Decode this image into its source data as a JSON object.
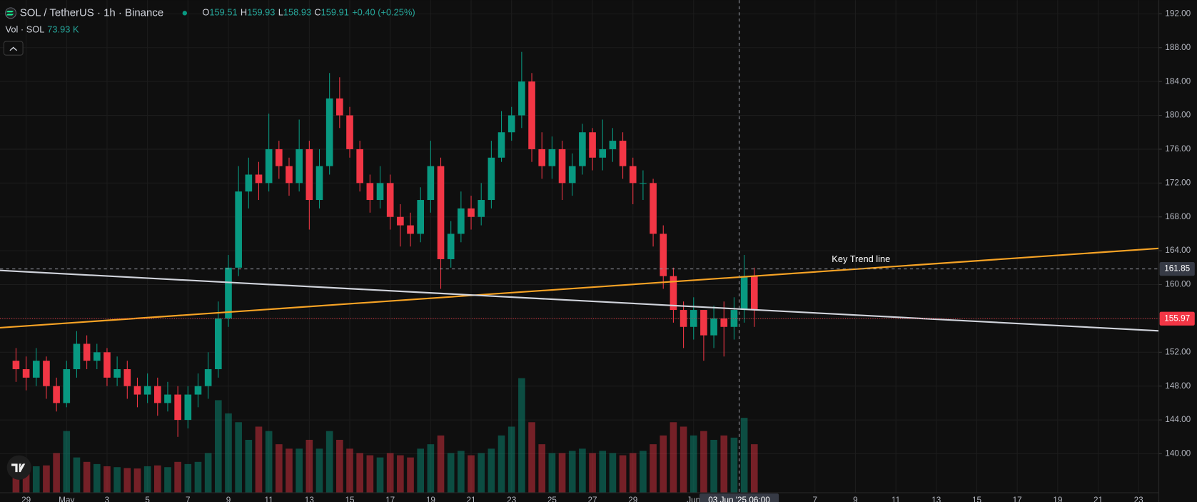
{
  "chart_data": {
    "type": "candlestick",
    "legend": {
      "symbol": "SOL / TetherUS · 1h · Binance",
      "ohlc": [
        {
          "label": "O",
          "value": 159.51
        },
        {
          "label": "H",
          "value": 159.93
        },
        {
          "label": "L",
          "value": 158.93
        },
        {
          "label": "C",
          "value": 159.91
        }
      ],
      "change": "+0.40 (+0.25%)",
      "volume_label": "Vol · SOL",
      "volume_value": "73.93 K"
    },
    "colors": {
      "up": "#089981",
      "down": "#f23645"
    },
    "x": [
      "2025-04-28T12:00",
      "2025-04-29T00:00",
      "2025-04-29T12:00",
      "2025-04-30T00:00",
      "2025-04-30T12:00",
      "2025-05-01T00:00",
      "2025-05-01T12:00",
      "2025-05-02T00:00",
      "2025-05-02T12:00",
      "2025-05-03T00:00",
      "2025-05-03T12:00",
      "2025-05-04T00:00",
      "2025-05-04T12:00",
      "2025-05-05T00:00",
      "2025-05-05T12:00",
      "2025-05-06T00:00",
      "2025-05-06T12:00",
      "2025-05-07T00:00",
      "2025-05-07T12:00",
      "2025-05-08T00:00",
      "2025-05-08T12:00",
      "2025-05-09T00:00",
      "2025-05-09T12:00",
      "2025-05-10T00:00",
      "2025-05-10T12:00",
      "2025-05-11T00:00",
      "2025-05-11T12:00",
      "2025-05-12T00:00",
      "2025-05-12T12:00",
      "2025-05-13T00:00",
      "2025-05-13T12:00",
      "2025-05-14T00:00",
      "2025-05-14T12:00",
      "2025-05-15T00:00",
      "2025-05-15T12:00",
      "2025-05-16T00:00",
      "2025-05-16T12:00",
      "2025-05-17T00:00",
      "2025-05-17T12:00",
      "2025-05-18T00:00",
      "2025-05-18T12:00",
      "2025-05-19T00:00",
      "2025-05-19T12:00",
      "2025-05-20T00:00",
      "2025-05-20T12:00",
      "2025-05-21T00:00",
      "2025-05-21T12:00",
      "2025-05-22T00:00",
      "2025-05-22T12:00",
      "2025-05-23T00:00",
      "2025-05-23T12:00",
      "2025-05-24T00:00",
      "2025-05-24T12:00",
      "2025-05-25T00:00",
      "2025-05-25T12:00",
      "2025-05-26T00:00",
      "2025-05-26T12:00",
      "2025-05-27T00:00",
      "2025-05-27T12:00",
      "2025-05-28T00:00",
      "2025-05-28T12:00",
      "2025-05-29T00:00",
      "2025-05-29T12:00",
      "2025-05-30T00:00",
      "2025-05-30T12:00",
      "2025-05-31T00:00",
      "2025-05-31T12:00",
      "2025-06-01T00:00",
      "2025-06-01T12:00",
      "2025-06-02T00:00",
      "2025-06-02T12:00",
      "2025-06-03T00:00",
      "2025-06-03T12:00",
      "2025-06-04T00:00"
    ],
    "open": [
      151,
      150,
      149,
      151,
      148,
      146,
      150,
      153,
      151,
      152,
      149,
      150,
      148,
      147,
      148,
      146,
      147,
      144,
      147,
      148,
      150,
      156,
      162,
      171,
      173,
      172,
      176,
      174,
      172,
      176,
      170,
      174,
      182,
      180,
      176,
      172,
      170,
      172,
      168,
      167,
      166,
      170,
      174,
      163,
      166,
      169,
      168,
      170,
      175,
      178,
      180,
      184,
      176,
      174,
      176,
      172,
      174,
      178,
      175,
      176,
      177,
      174,
      172,
      172,
      166,
      161,
      157,
      155,
      157,
      154,
      156,
      155,
      157,
      161
    ],
    "high": [
      152.5,
      151.5,
      152.5,
      151.5,
      149,
      151,
      154.5,
      154,
      153,
      152.5,
      151.5,
      151,
      149,
      149.5,
      149,
      148.5,
      148,
      148,
      149.5,
      152,
      158,
      163.5,
      174,
      175,
      174.5,
      180.2,
      177,
      175,
      179.5,
      177,
      176,
      185,
      184.5,
      181,
      177,
      173,
      174,
      173,
      169.5,
      168.5,
      171.5,
      177,
      175,
      167.5,
      171,
      170.5,
      172,
      177,
      180.5,
      181,
      187.5,
      185,
      178,
      177.5,
      177,
      175.5,
      179,
      178.5,
      179.5,
      178.5,
      178,
      175,
      173.5,
      172.5,
      167,
      162,
      158,
      158.5,
      157,
      157.5,
      158,
      158.5,
      163.5,
      162
    ],
    "low": [
      148.5,
      147.5,
      148,
      146.5,
      145,
      145.5,
      149,
      150,
      150,
      148,
      148,
      146.5,
      145.5,
      146,
      144.5,
      145,
      142,
      143,
      145.5,
      146.5,
      149,
      155,
      161,
      169,
      170,
      171,
      172.5,
      170.5,
      171,
      166.5,
      169,
      173,
      178.5,
      175,
      171,
      168.5,
      169,
      166.5,
      164.5,
      164.5,
      165,
      168.5,
      159.5,
      162,
      165,
      166.5,
      167,
      169,
      174.5,
      177,
      178.5,
      174.5,
      172.5,
      172.5,
      170,
      170.5,
      173,
      173.5,
      173.5,
      174.5,
      172.5,
      169.5,
      170,
      164.5,
      159.5,
      155.5,
      152.5,
      153.5,
      151,
      152.5,
      151.5,
      153.5,
      155.5,
      155
    ],
    "close": [
      150,
      149,
      151,
      148,
      146,
      150,
      153,
      151,
      152,
      149,
      150,
      148,
      147,
      148,
      146,
      147,
      144,
      147,
      148,
      150,
      156,
      162,
      171,
      173,
      172,
      176,
      174,
      172,
      176,
      170,
      174,
      182,
      180,
      176,
      172,
      170,
      172,
      168,
      167,
      166,
      170,
      174,
      163,
      166,
      169,
      168,
      170,
      175,
      178,
      180,
      184,
      176,
      174,
      176,
      172,
      174,
      178,
      175,
      176,
      177,
      174,
      172,
      172,
      166,
      161,
      157,
      155,
      157,
      154,
      156,
      155,
      157,
      161,
      157
    ],
    "volume": [
      700,
      650,
      600,
      620,
      900,
      1400,
      800,
      700,
      650,
      600,
      580,
      560,
      550,
      600,
      620,
      580,
      700,
      650,
      700,
      900,
      2100,
      1800,
      1600,
      1200,
      1500,
      1400,
      1100,
      1000,
      1000,
      1200,
      1000,
      1400,
      1200,
      1000,
      900,
      850,
      800,
      900,
      850,
      800,
      1000,
      1100,
      1300,
      900,
      950,
      850,
      900,
      1000,
      1300,
      1500,
      2600,
      1600,
      1100,
      900,
      900,
      950,
      1000,
      900,
      950,
      900,
      850,
      900,
      950,
      1100,
      1300,
      1600,
      1500,
      1300,
      1400,
      1200,
      1300,
      1250,
      1700,
      1100
    ],
    "xlim": [
      "2025-04-27T17:00",
      "2025-06-24T00:00"
    ],
    "xticks": [
      {
        "value": "2025-04-29T00:00",
        "label": "29"
      },
      {
        "value": "2025-05-01T00:00",
        "label": "May"
      },
      {
        "value": "2025-05-03T00:00",
        "label": "3"
      },
      {
        "value": "2025-05-05T00:00",
        "label": "5"
      },
      {
        "value": "2025-05-07T00:00",
        "label": "7"
      },
      {
        "value": "2025-05-09T00:00",
        "label": "9"
      },
      {
        "value": "2025-05-11T00:00",
        "label": "11"
      },
      {
        "value": "2025-05-13T00:00",
        "label": "13"
      },
      {
        "value": "2025-05-15T00:00",
        "label": "15"
      },
      {
        "value": "2025-05-17T00:00",
        "label": "17"
      },
      {
        "value": "2025-05-19T00:00",
        "label": "19"
      },
      {
        "value": "2025-05-21T00:00",
        "label": "21"
      },
      {
        "value": "2025-05-23T00:00",
        "label": "23"
      },
      {
        "value": "2025-05-25T00:00",
        "label": "25"
      },
      {
        "value": "2025-05-27T00:00",
        "label": "27"
      },
      {
        "value": "2025-05-29T00:00",
        "label": "29"
      },
      {
        "value": "2025-06-01T00:00",
        "label": "Jun"
      },
      {
        "value": "2025-06-07T00:00",
        "label": "7"
      },
      {
        "value": "2025-06-09T00:00",
        "label": "9"
      },
      {
        "value": "2025-06-11T00:00",
        "label": "11"
      },
      {
        "value": "2025-06-13T00:00",
        "label": "13"
      },
      {
        "value": "2025-06-15T00:00",
        "label": "15"
      },
      {
        "value": "2025-06-17T00:00",
        "label": "17"
      },
      {
        "value": "2025-06-19T00:00",
        "label": "19"
      },
      {
        "value": "2025-06-21T00:00",
        "label": "21"
      },
      {
        "value": "2025-06-23T00:00",
        "label": "23"
      }
    ],
    "ylim": [
      135.4,
      193.62
    ],
    "yticks": [
      {
        "value": 140,
        "label": "140.00"
      },
      {
        "value": 144,
        "label": "144.00"
      },
      {
        "value": 148,
        "label": "148.00"
      },
      {
        "value": 152,
        "label": "152.00"
      },
      {
        "value": 156,
        "label": "156.00"
      },
      {
        "value": 160,
        "label": "160.00"
      },
      {
        "value": 164,
        "label": "164.00"
      },
      {
        "value": 168,
        "label": "168.00"
      },
      {
        "value": 172,
        "label": "172.00"
      },
      {
        "value": 176,
        "label": "176.00"
      },
      {
        "value": 180,
        "label": "180.00"
      },
      {
        "value": 184,
        "label": "184.00"
      },
      {
        "value": 188,
        "label": "188.00"
      },
      {
        "value": 192,
        "label": "192.00"
      }
    ],
    "grid": true,
    "trend_lines": [
      {
        "label": "Key Trend line",
        "color": "#f7a325",
        "x": [
          "2025-04-27T17:00",
          "2025-06-24T00:00"
        ],
        "y": [
          154.9,
          164.28
        ]
      },
      {
        "color": "#d1d4dc",
        "x": [
          "2025-04-27T17:00",
          "2025-06-24T00:00"
        ],
        "y": [
          161.67,
          154.53
        ]
      }
    ],
    "crosshair": {
      "x": "2025-06-03T06:00",
      "time_label": "03 Jun '25  06:00",
      "price": 161.85
    },
    "last_price": 155.97
  }
}
